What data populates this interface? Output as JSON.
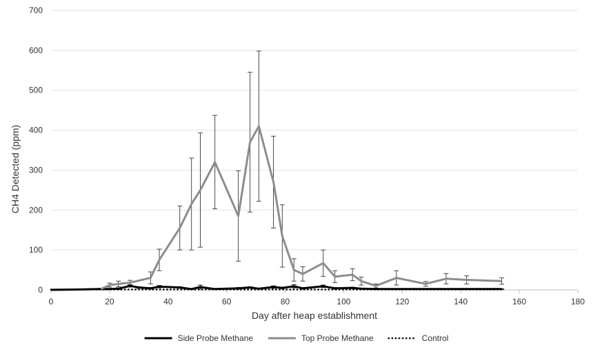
{
  "chart_data": {
    "type": "line",
    "title": "",
    "xlabel": "Day after heap establishment",
    "ylabel": "CH4 Detected (ppm)",
    "xlim": [
      0,
      180
    ],
    "ylim": [
      0,
      700
    ],
    "xticks": [
      0,
      20,
      40,
      60,
      80,
      100,
      120,
      140,
      160,
      180
    ],
    "yticks": [
      0,
      100,
      200,
      300,
      400,
      500,
      600,
      700
    ],
    "grid": "horizontal",
    "legend_position": "bottom",
    "series": [
      {
        "name": "Top Probe Methane",
        "color": "#8c8c8c",
        "style": "solid",
        "x": [
          17,
          20,
          23,
          27,
          34,
          37,
          44,
          48,
          51,
          56,
          64,
          68,
          71,
          76,
          79,
          83,
          86,
          93,
          97,
          103,
          106,
          111,
          118,
          128,
          135,
          142,
          154
        ],
        "y": [
          2,
          12,
          15,
          18,
          30,
          75,
          155,
          215,
          250,
          320,
          185,
          370,
          410,
          270,
          135,
          50,
          40,
          67,
          33,
          38,
          22,
          10,
          30,
          15,
          28,
          25,
          22
        ],
        "err": [
          2,
          5,
          7,
          6,
          15,
          27,
          55,
          115,
          143,
          117,
          113,
          175,
          188,
          115,
          78,
          28,
          18,
          33,
          15,
          15,
          10,
          5,
          18,
          6,
          13,
          10,
          8
        ]
      },
      {
        "name": "Side Probe Methane",
        "color": "#000000",
        "style": "solid",
        "x": [
          0,
          10,
          17,
          20,
          23,
          27,
          30,
          34,
          37,
          44,
          48,
          51,
          56,
          64,
          68,
          71,
          76,
          79,
          83,
          86,
          93,
          97,
          103,
          106,
          111,
          118,
          128,
          135,
          142,
          154
        ],
        "y": [
          0,
          1,
          2,
          2,
          3,
          10,
          6,
          4,
          8,
          6,
          2,
          7,
          2,
          4,
          6,
          3,
          7,
          5,
          9,
          4,
          9,
          4,
          5,
          3,
          2,
          2,
          2,
          2,
          2,
          2
        ],
        "err": [
          0,
          0,
          0,
          1,
          2,
          3,
          2,
          2,
          3,
          2,
          1,
          5,
          1,
          2,
          2,
          1,
          3,
          2,
          4,
          2,
          3,
          2,
          2,
          1,
          1,
          1,
          1,
          1,
          1,
          1
        ]
      },
      {
        "name": "Control",
        "color": "#000000",
        "style": "dotted",
        "x": [
          0,
          10,
          20,
          30,
          40,
          50,
          60,
          70,
          80,
          90,
          100,
          110,
          120,
          130,
          140,
          154
        ],
        "y": [
          1,
          1,
          1,
          1,
          1,
          1,
          1,
          1,
          1,
          1,
          1,
          1,
          1,
          1,
          1,
          1
        ],
        "err": []
      }
    ]
  }
}
